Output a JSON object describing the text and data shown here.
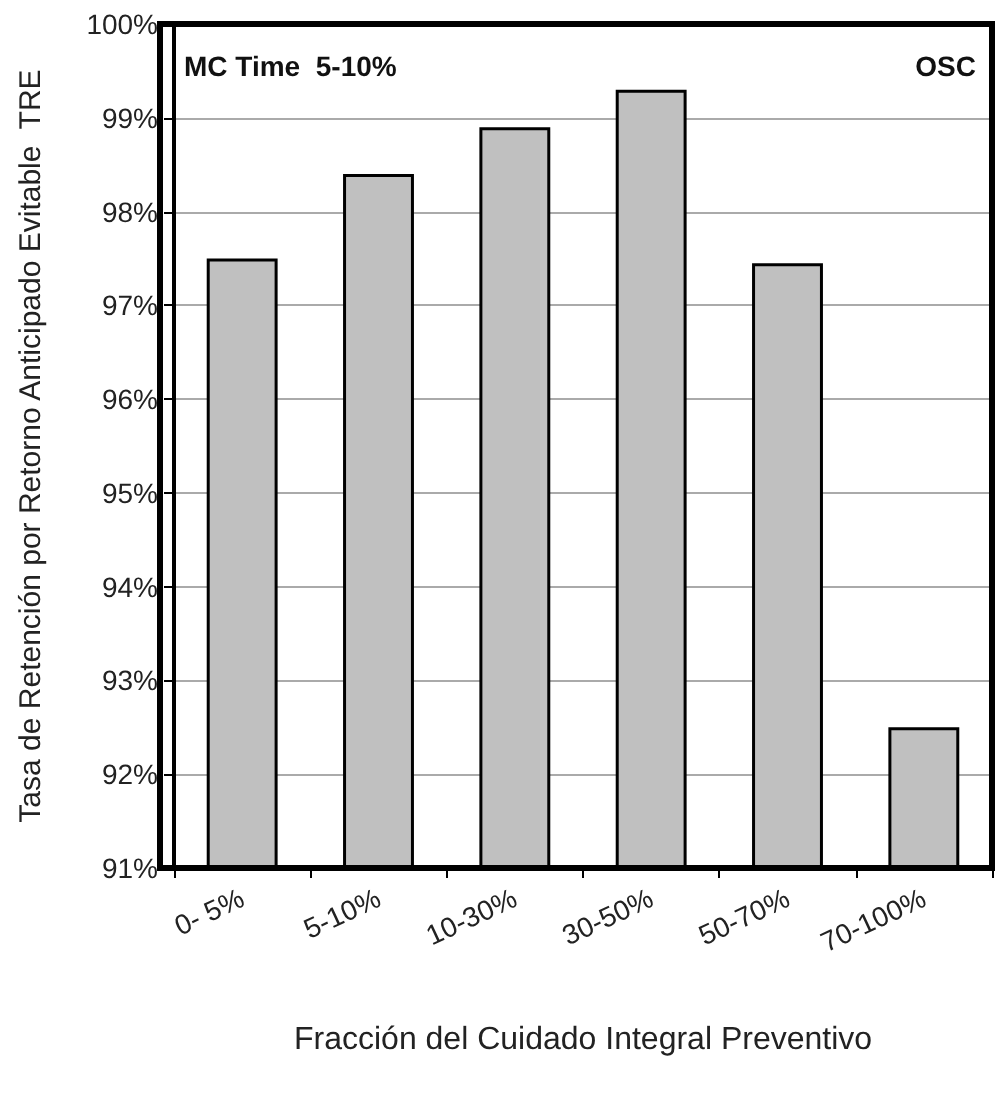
{
  "chart_data": {
    "type": "bar",
    "xlabel": "Fracción del Cuidado Integral Preventivo",
    "ylabel": "Tasa de Retención por Retorno Anticipado Evitable  TRE",
    "categories": [
      "0- 5%",
      "5-10%",
      "10-30%",
      "30-50%",
      "50-70%",
      "70-100%"
    ],
    "values": [
      97.5,
      98.4,
      98.9,
      99.3,
      97.45,
      92.5
    ],
    "color": "#c0c0c0",
    "ylim": [
      91,
      100
    ],
    "yticks": [
      {
        "value": 91,
        "label": "91%"
      },
      {
        "value": 92,
        "label": "92%"
      },
      {
        "value": 93,
        "label": "93%"
      },
      {
        "value": 94,
        "label": "94%"
      },
      {
        "value": 95,
        "label": "95%"
      },
      {
        "value": 96,
        "label": "96%"
      },
      {
        "value": 97,
        "label": "97%"
      },
      {
        "value": 98,
        "label": "98%"
      },
      {
        "value": 99,
        "label": "99%"
      },
      {
        "value": 100,
        "label": "100%"
      }
    ],
    "grid": "y",
    "annotations": [
      "MC Time  5-10%",
      "OSC"
    ]
  }
}
